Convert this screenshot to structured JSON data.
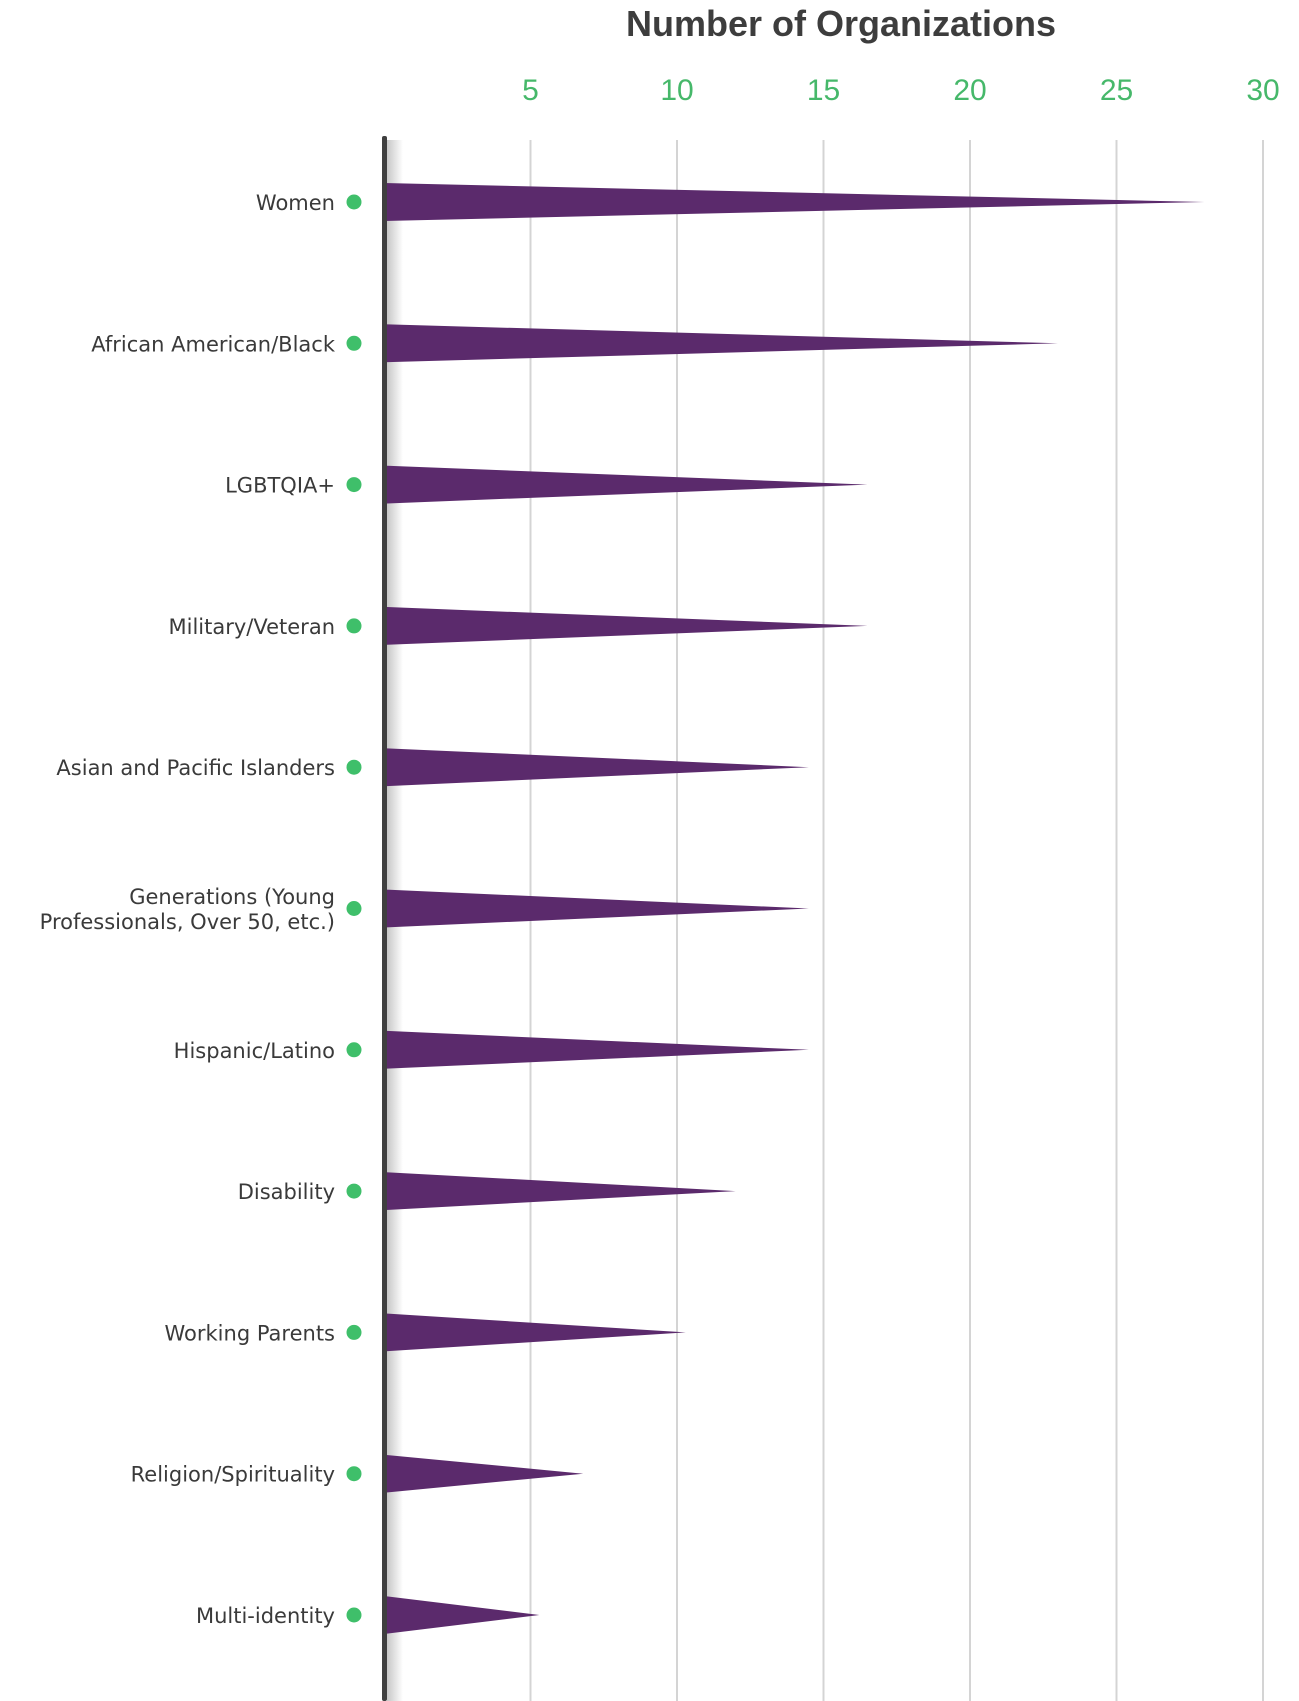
{
  "colors": {
    "spike": "#5b2a6c",
    "tick_label": "#46b86a",
    "marker": "#3fbf6a",
    "gridline": "#d4d4d4",
    "axis_line": "#3f3f3f",
    "label_text": "#3a3a3a"
  },
  "chart_data": {
    "type": "bar",
    "orientation": "horizontal",
    "title": "",
    "xlabel": "Number of Organizations",
    "ylabel": "",
    "xlim": [
      0,
      30
    ],
    "xticks": [
      5,
      10,
      15,
      20,
      25,
      30
    ],
    "x_axis_position": "top",
    "grid": true,
    "legend": "none",
    "categories": [
      [
        "Women"
      ],
      [
        "African American/Black"
      ],
      [
        "LGBTQIA+"
      ],
      [
        "Military/Veteran"
      ],
      [
        "Asian and Pacific Islanders"
      ],
      [
        "Generations (Young",
        "Professionals, Over 50, etc.)"
      ],
      [
        "Hispanic/Latino"
      ],
      [
        "Disability"
      ],
      [
        "Working Parents"
      ],
      [
        "Religion/Spirituality"
      ],
      [
        "Multi-identity"
      ]
    ],
    "values": [
      28,
      23,
      16.5,
      16.5,
      14.5,
      14.5,
      14.5,
      12,
      10.3,
      6.8,
      5.3
    ]
  }
}
